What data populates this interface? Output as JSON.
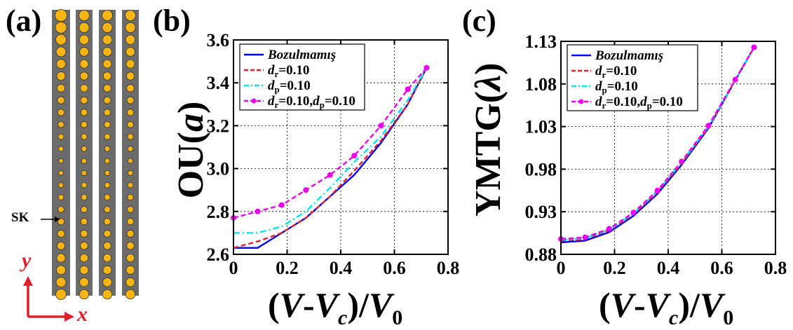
{
  "panel_a": {
    "label": "(a)",
    "annotation": "SK",
    "axis_y": "y",
    "axis_x": "x",
    "colors": {
      "strip": "#6b6b6b",
      "dot": "#f7b514",
      "arrow": "#e0202a"
    }
  },
  "panel_b_label": "(b)",
  "panel_c_label": "(c)",
  "chart_data": [
    {
      "type": "line",
      "ylabel": "OU(a)",
      "xlabel": "(V-Vc)/V0",
      "xlim": [
        0,
        0.8
      ],
      "ylim": [
        2.6,
        3.6
      ],
      "xticks": [
        0,
        0.2,
        0.4,
        0.6,
        0.8
      ],
      "xtick_labels": [
        "0",
        "0.2",
        "0.4",
        "0.6",
        "0.8"
      ],
      "yticks": [
        2.6,
        2.8,
        3.0,
        3.2,
        3.4,
        3.6
      ],
      "ytick_labels": [
        "2.6",
        "2.8",
        "3.0",
        "3.2",
        "3.4",
        "3.6"
      ],
      "grid": true,
      "legend_position": "top-left",
      "series": [
        {
          "name": "Bozulmamış",
          "color": "#0000ff",
          "style": "solid",
          "x": [
            0,
            0.09,
            0.18,
            0.27,
            0.36,
            0.45,
            0.55,
            0.65,
            0.72
          ],
          "y": [
            2.63,
            2.63,
            2.7,
            2.77,
            2.87,
            2.97,
            3.12,
            3.3,
            3.47
          ]
        },
        {
          "name": "dr=0.10",
          "color": "#e0202a",
          "style": "dashed",
          "x": [
            0,
            0.09,
            0.18,
            0.27,
            0.36,
            0.45,
            0.55,
            0.65,
            0.72
          ],
          "y": [
            2.63,
            2.66,
            2.7,
            2.77,
            2.87,
            2.99,
            3.13,
            3.3,
            3.47
          ]
        },
        {
          "name": "dp=0.10",
          "color": "#00e5ee",
          "style": "dashdot",
          "x": [
            0,
            0.09,
            0.18,
            0.27,
            0.36,
            0.45,
            0.55,
            0.65,
            0.72
          ],
          "y": [
            2.7,
            2.7,
            2.73,
            2.8,
            2.91,
            3.03,
            3.15,
            3.32,
            3.47
          ]
        },
        {
          "name": "dr=0.10,dp=0.10",
          "color": "#ee00ee",
          "style": "dashed-marker",
          "x": [
            0,
            0.09,
            0.18,
            0.27,
            0.36,
            0.45,
            0.55,
            0.65,
            0.72
          ],
          "y": [
            2.77,
            2.8,
            2.83,
            2.9,
            2.97,
            3.06,
            3.2,
            3.37,
            3.47
          ]
        }
      ]
    },
    {
      "type": "line",
      "ylabel": "YMTG(λ)",
      "xlabel": "(V-Vc)/V0",
      "xlim": [
        0,
        0.8
      ],
      "ylim": [
        0.88,
        1.13
      ],
      "xticks": [
        0,
        0.2,
        0.4,
        0.6,
        0.8
      ],
      "xtick_labels": [
        "0",
        "0.2",
        "0.4",
        "0.6",
        "0.8"
      ],
      "yticks": [
        0.88,
        0.93,
        0.98,
        1.03,
        1.08,
        1.13
      ],
      "ytick_labels": [
        "0.88",
        "0.93",
        "0.98",
        "1.03",
        "1.08",
        "1.13"
      ],
      "grid": true,
      "legend_position": "top-left",
      "series": [
        {
          "name": "Bozulmamış",
          "color": "#0000ff",
          "style": "solid",
          "x": [
            0,
            0.09,
            0.18,
            0.27,
            0.36,
            0.45,
            0.55,
            0.65,
            0.72
          ],
          "y": [
            0.894,
            0.896,
            0.906,
            0.925,
            0.951,
            0.985,
            1.028,
            1.084,
            1.123
          ]
        },
        {
          "name": "dr=0.10",
          "color": "#e0202a",
          "style": "dashed",
          "x": [
            0,
            0.09,
            0.18,
            0.27,
            0.36,
            0.45,
            0.55,
            0.65,
            0.72
          ],
          "y": [
            0.896,
            0.898,
            0.908,
            0.927,
            0.953,
            0.987,
            1.029,
            1.084,
            1.123
          ]
        },
        {
          "name": "dp=0.10",
          "color": "#00e5ee",
          "style": "dashdot",
          "x": [
            0,
            0.09,
            0.18,
            0.27,
            0.36,
            0.45,
            0.55,
            0.65,
            0.72
          ],
          "y": [
            0.897,
            0.899,
            0.909,
            0.928,
            0.954,
            0.988,
            1.03,
            1.084,
            1.123
          ]
        },
        {
          "name": "dr=0.10,dp=0.10",
          "color": "#ee00ee",
          "style": "dashed-marker",
          "x": [
            0,
            0.09,
            0.18,
            0.27,
            0.36,
            0.45,
            0.55,
            0.65,
            0.72
          ],
          "y": [
            0.898,
            0.9,
            0.91,
            0.929,
            0.955,
            0.989,
            1.031,
            1.085,
            1.123
          ]
        }
      ]
    }
  ]
}
